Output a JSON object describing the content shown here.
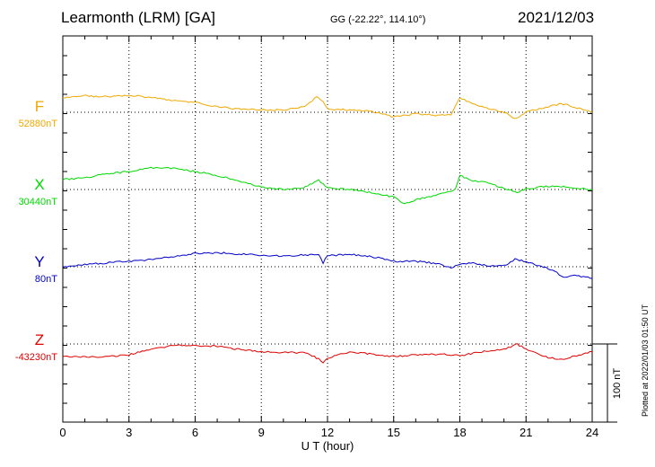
{
  "header": {
    "title": "Learmonth (LRM)  [GA]",
    "coords": "GG (-22.22°, 114.10°)",
    "date": "2021/12/03"
  },
  "plotted_stamp": "Plotted at 2022/01/03 01:50 UT",
  "colors": {
    "F": "#f0a800",
    "X": "#00d800",
    "Y": "#0000c8",
    "Z": "#e00000"
  },
  "chart_data": {
    "type": "line",
    "xlabel": "U T (hour)",
    "x_ticks": [
      "0",
      "3",
      "6",
      "9",
      "12",
      "15",
      "18",
      "21",
      "24"
    ],
    "xlim": [
      0,
      24
    ],
    "scale_bar": {
      "label": "100 nT",
      "value_nT": 100
    },
    "series": [
      {
        "name": "F",
        "baseline_label": "52880nT",
        "baseline": 52880,
        "points": [
          [
            0,
            52899
          ],
          [
            1,
            52901
          ],
          [
            2,
            52900
          ],
          [
            3,
            52902
          ],
          [
            4,
            52899
          ],
          [
            5,
            52895
          ],
          [
            6,
            52893
          ],
          [
            7,
            52887
          ],
          [
            8,
            52884
          ],
          [
            9,
            52883
          ],
          [
            10,
            52883
          ],
          [
            11,
            52887
          ],
          [
            11.5,
            52900
          ],
          [
            11.8,
            52893
          ],
          [
            12,
            52884
          ],
          [
            13,
            52883
          ],
          [
            14,
            52881
          ],
          [
            15,
            52874
          ],
          [
            16,
            52878
          ],
          [
            17,
            52876
          ],
          [
            17.6,
            52877
          ],
          [
            18,
            52899
          ],
          [
            18.5,
            52892
          ],
          [
            19,
            52887
          ],
          [
            20,
            52880
          ],
          [
            20.5,
            52872
          ],
          [
            21,
            52880
          ],
          [
            22,
            52887
          ],
          [
            22.6,
            52891
          ],
          [
            23,
            52888
          ],
          [
            24,
            52880
          ]
        ]
      },
      {
        "name": "X",
        "baseline_label": "30440nT",
        "baseline": 30440,
        "points": [
          [
            0,
            30453
          ],
          [
            1,
            30455
          ],
          [
            2,
            30460
          ],
          [
            3,
            30463
          ],
          [
            4,
            30468
          ],
          [
            5,
            30467
          ],
          [
            6,
            30463
          ],
          [
            7,
            30458
          ],
          [
            8,
            30451
          ],
          [
            9,
            30443
          ],
          [
            10,
            30440
          ],
          [
            11,
            30443
          ],
          [
            11.6,
            30452
          ],
          [
            12,
            30442
          ],
          [
            13,
            30440
          ],
          [
            14,
            30436
          ],
          [
            15,
            30430
          ],
          [
            15.5,
            30422
          ],
          [
            16,
            30427
          ],
          [
            17,
            30433
          ],
          [
            17.8,
            30440
          ],
          [
            18,
            30458
          ],
          [
            18.5,
            30452
          ],
          [
            19,
            30450
          ],
          [
            20,
            30442
          ],
          [
            20.6,
            30436
          ],
          [
            21,
            30441
          ],
          [
            22,
            30444
          ],
          [
            23,
            30443
          ],
          [
            24,
            30440
          ]
        ]
      },
      {
        "name": "Y",
        "baseline_label": "80nT",
        "baseline": 80,
        "points": [
          [
            0,
            80
          ],
          [
            1,
            83
          ],
          [
            2,
            85
          ],
          [
            3,
            87
          ],
          [
            4,
            89
          ],
          [
            5,
            93
          ],
          [
            6,
            97
          ],
          [
            7,
            98
          ],
          [
            8,
            96
          ],
          [
            9,
            95
          ],
          [
            10,
            94
          ],
          [
            11,
            95
          ],
          [
            11.6,
            96
          ],
          [
            11.8,
            85
          ],
          [
            12,
            94
          ],
          [
            13,
            96
          ],
          [
            14,
            93
          ],
          [
            15,
            87
          ],
          [
            16,
            87
          ],
          [
            17,
            84
          ],
          [
            17.6,
            78
          ],
          [
            18,
            83
          ],
          [
            18.5,
            85
          ],
          [
            19,
            82
          ],
          [
            20,
            81
          ],
          [
            20.5,
            90
          ],
          [
            21,
            86
          ],
          [
            22,
            78
          ],
          [
            22.8,
            66
          ],
          [
            23,
            69
          ],
          [
            24,
            66
          ]
        ]
      },
      {
        "name": "Z",
        "baseline_label": "-43230nT",
        "baseline": -43230,
        "points": [
          [
            0,
            -43245
          ],
          [
            1,
            -43247
          ],
          [
            2,
            -43246
          ],
          [
            3,
            -43244
          ],
          [
            4,
            -43237
          ],
          [
            5,
            -43232
          ],
          [
            6,
            -43232
          ],
          [
            7,
            -43233
          ],
          [
            8,
            -43237
          ],
          [
            9,
            -43240
          ],
          [
            10,
            -43241
          ],
          [
            11,
            -43241
          ],
          [
            11.6,
            -43249
          ],
          [
            11.8,
            -43254
          ],
          [
            12,
            -43248
          ],
          [
            13,
            -43240
          ],
          [
            14,
            -43243
          ],
          [
            15,
            -43246
          ],
          [
            16,
            -43244
          ],
          [
            17,
            -43243
          ],
          [
            18,
            -43245
          ],
          [
            19,
            -43240
          ],
          [
            20,
            -43237
          ],
          [
            20.6,
            -43230
          ],
          [
            21,
            -43237
          ],
          [
            22,
            -43247
          ],
          [
            22.6,
            -43250
          ],
          [
            23,
            -43247
          ],
          [
            24,
            -43240
          ]
        ]
      }
    ]
  }
}
